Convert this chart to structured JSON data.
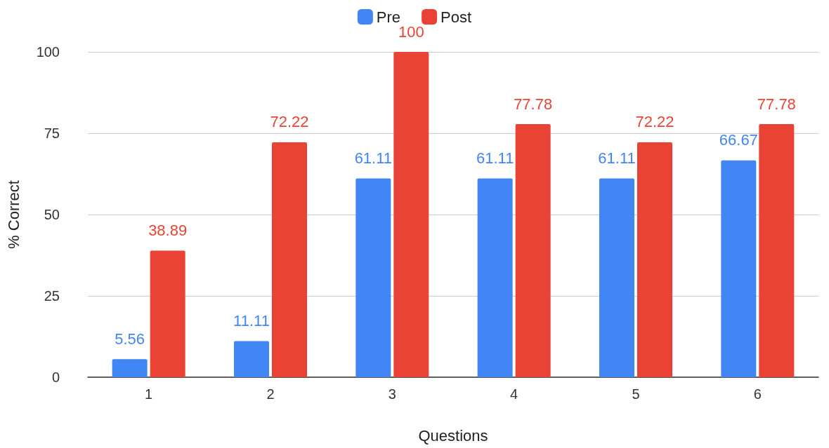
{
  "chart_data": {
    "type": "bar",
    "xlabel": "Questions",
    "ylabel": "% Correct",
    "categories": [
      "1",
      "2",
      "3",
      "4",
      "5",
      "6"
    ],
    "series": [
      {
        "name": "Pre",
        "color": "#4285f4",
        "values": [
          5.56,
          11.11,
          61.11,
          61.11,
          61.11,
          66.67
        ]
      },
      {
        "name": "Post",
        "color": "#ea4335",
        "values": [
          38.89,
          72.22,
          100,
          77.78,
          72.22,
          77.78
        ]
      }
    ],
    "ylim": [
      0,
      100
    ],
    "yticks": [
      0,
      25,
      50,
      75,
      100
    ],
    "grid": "y",
    "legend": "top",
    "data_labels": true
  }
}
